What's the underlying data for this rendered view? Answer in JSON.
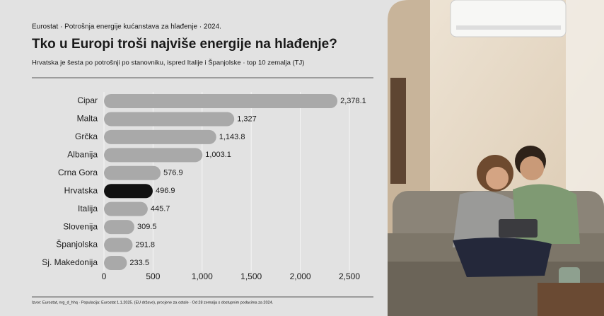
{
  "chart_data": {
    "type": "bar",
    "orientation": "horizontal",
    "kicker": "Eurostat · Potrošnja energije kućanstava za hlađenje · 2024.",
    "title": "Tko u Europi troši najviše energije na hlađenje?",
    "subtitle": "Hrvatska je šesta po potrošnji po stanovniku, ispred Italije i Španjolske · top 10 zemalja (TJ)",
    "categories": [
      "Cipar",
      "Malta",
      "Grčka",
      "Albanija",
      "Crna Gora",
      "Hrvatska",
      "Italija",
      "Slovenija",
      "Španjolska",
      "Sj. Makedonija"
    ],
    "values": [
      2378.1,
      1327,
      1143.8,
      1003.1,
      576.9,
      496.9,
      445.7,
      309.5,
      291.8,
      233.5
    ],
    "value_labels": [
      "2,378.1",
      "1,327",
      "1,143.8",
      "1,003.1",
      "576.9",
      "496.9",
      "445.7",
      "309.5",
      "291.8",
      "233.5"
    ],
    "colors": [
      "#a9a9a9",
      "#a9a9a9",
      "#a9a9a9",
      "#a9a9a9",
      "#a9a9a9",
      "#111111",
      "#a9a9a9",
      "#a9a9a9",
      "#a9a9a9",
      "#a9a9a9"
    ],
    "xlim": [
      0,
      2500
    ],
    "xticks": [
      0,
      500,
      {
        "value": 1000,
        "label": "1,000"
      },
      {
        "value": 1500,
        "label": "1,500"
      },
      {
        "value": 2000,
        "label": "2,000"
      },
      {
        "value": 2500,
        "label": "2,500"
      }
    ],
    "grid": true,
    "source": "Izvor: Eurostat, nrg_d_hhq · Populacija: Eurostat 1.1.2025. (EU države), procjene za ostale · Od 28 zemalja s dostupnim podacima za 2024."
  }
}
